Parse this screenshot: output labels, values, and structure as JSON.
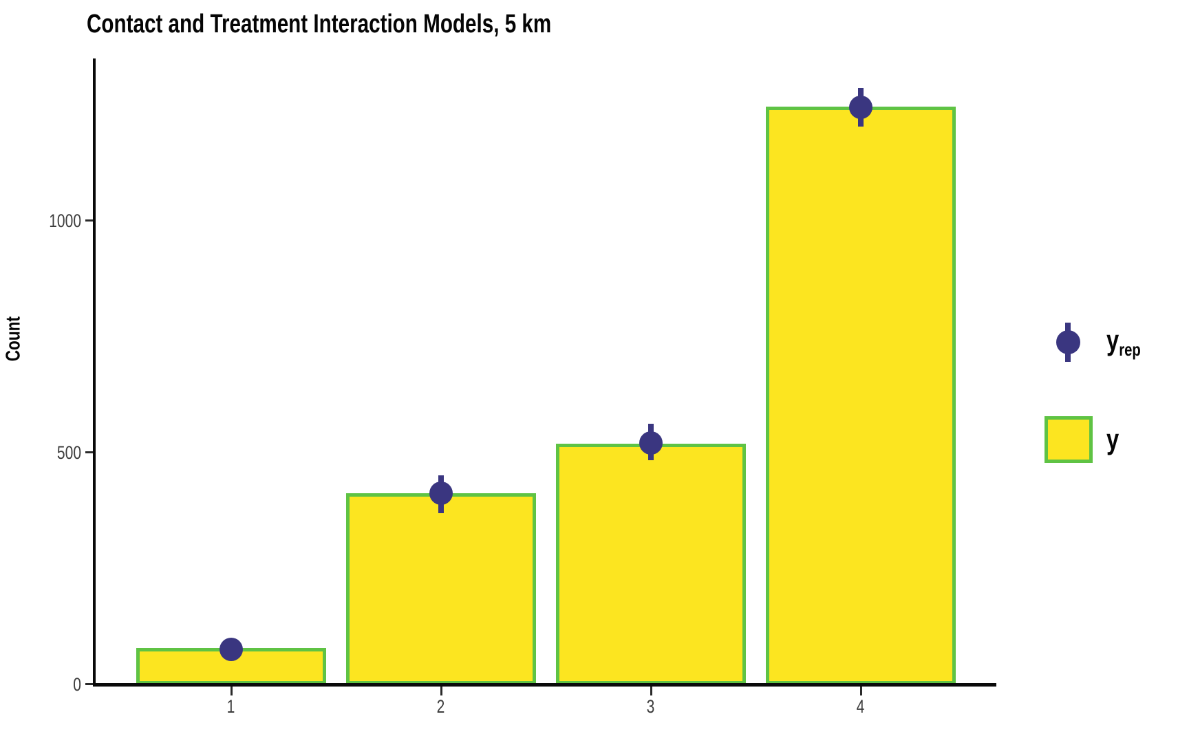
{
  "header": {
    "title": "Contact and Treatment Interaction Models, 5 km"
  },
  "axes": {
    "y_label": "Count",
    "y_tick_labels": [
      "0",
      "500",
      "1000"
    ],
    "x_tick_labels": [
      "1",
      "2",
      "3",
      "4"
    ]
  },
  "legend": {
    "items": [
      {
        "marker": "pointrange-marker",
        "label_main": "y",
        "label_sub": "rep"
      },
      {
        "marker": "bar-swatch",
        "label_main": "y",
        "label_sub": ""
      }
    ]
  },
  "colors": {
    "bar_fill": "#FCE520",
    "bar_border": "#5FC344",
    "point": "#3A3680",
    "axis": "#0a0a0a",
    "tick_text": "#3d3d3d",
    "title_text": "#050505"
  },
  "chart_data": {
    "type": "bar",
    "title": "Contact and Treatment Interaction Models, 5 km",
    "xlabel": "",
    "ylabel": "Count",
    "categories": [
      "1",
      "2",
      "3",
      "4"
    ],
    "y_ticks": [
      0,
      500,
      1000
    ],
    "ylim": [
      0,
      1350
    ],
    "grid": false,
    "legend_position": "right",
    "series": [
      {
        "name": "y",
        "type": "bar",
        "values": [
          79,
          413,
          520,
          1247
        ]
      },
      {
        "name": "y_rep",
        "type": "pointrange",
        "values": [
          75,
          413,
          521,
          1245
        ],
        "ymin": [
          62,
          369,
          484,
          1203
        ],
        "ymax": [
          88,
          451,
          562,
          1286
        ]
      }
    ]
  }
}
